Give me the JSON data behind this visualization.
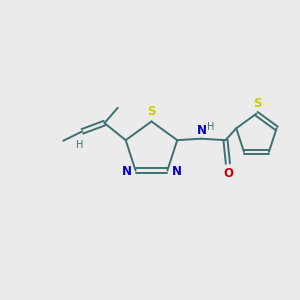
{
  "bg_color": "#ebebeb",
  "bond_color": "#3d7070",
  "S_color": "#cccc00",
  "N_color": "#0000cc",
  "O_color": "#cc0000",
  "font_size": 8.5,
  "lw": 1.4,
  "xlim": [
    0,
    10
  ],
  "ylim": [
    0,
    10
  ]
}
